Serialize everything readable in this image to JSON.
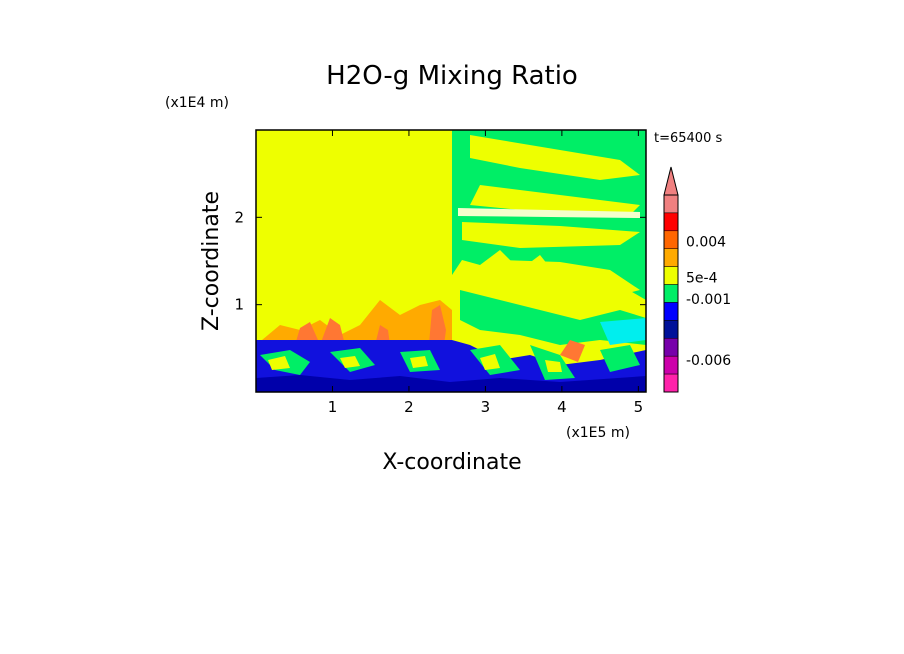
{
  "chart_data": {
    "type": "heatmap",
    "title": "H2O-g Mixing Ratio",
    "xlabel": "X-coordinate",
    "ylabel": "Z-coordinate",
    "x_unit": "(x1E5 m)",
    "y_unit": "(x1E4 m)",
    "time_label": "t=65400 s",
    "xlim": [
      0,
      5.1
    ],
    "ylim": [
      0,
      3.0
    ],
    "x_ticks": [
      "1",
      "2",
      "3",
      "4",
      "5"
    ],
    "y_ticks": [
      "1",
      "2"
    ],
    "colorbar": {
      "labels": [
        "0.004",
        "5e-4",
        "-0.001",
        "-0.006"
      ],
      "colors": [
        "#f08080",
        "#ff0000",
        "#ff6600",
        "#ffaa00",
        "#eeff00",
        "#00ee66",
        "#0000ff",
        "#001199",
        "#7700aa",
        "#cc00aa",
        "#ff22aa"
      ],
      "extend": "max"
    },
    "colors": {
      "background": "#eeff00",
      "upper_band": "#00ee66",
      "lower_band": "#1111dd",
      "warm": "#ff7733"
    }
  }
}
